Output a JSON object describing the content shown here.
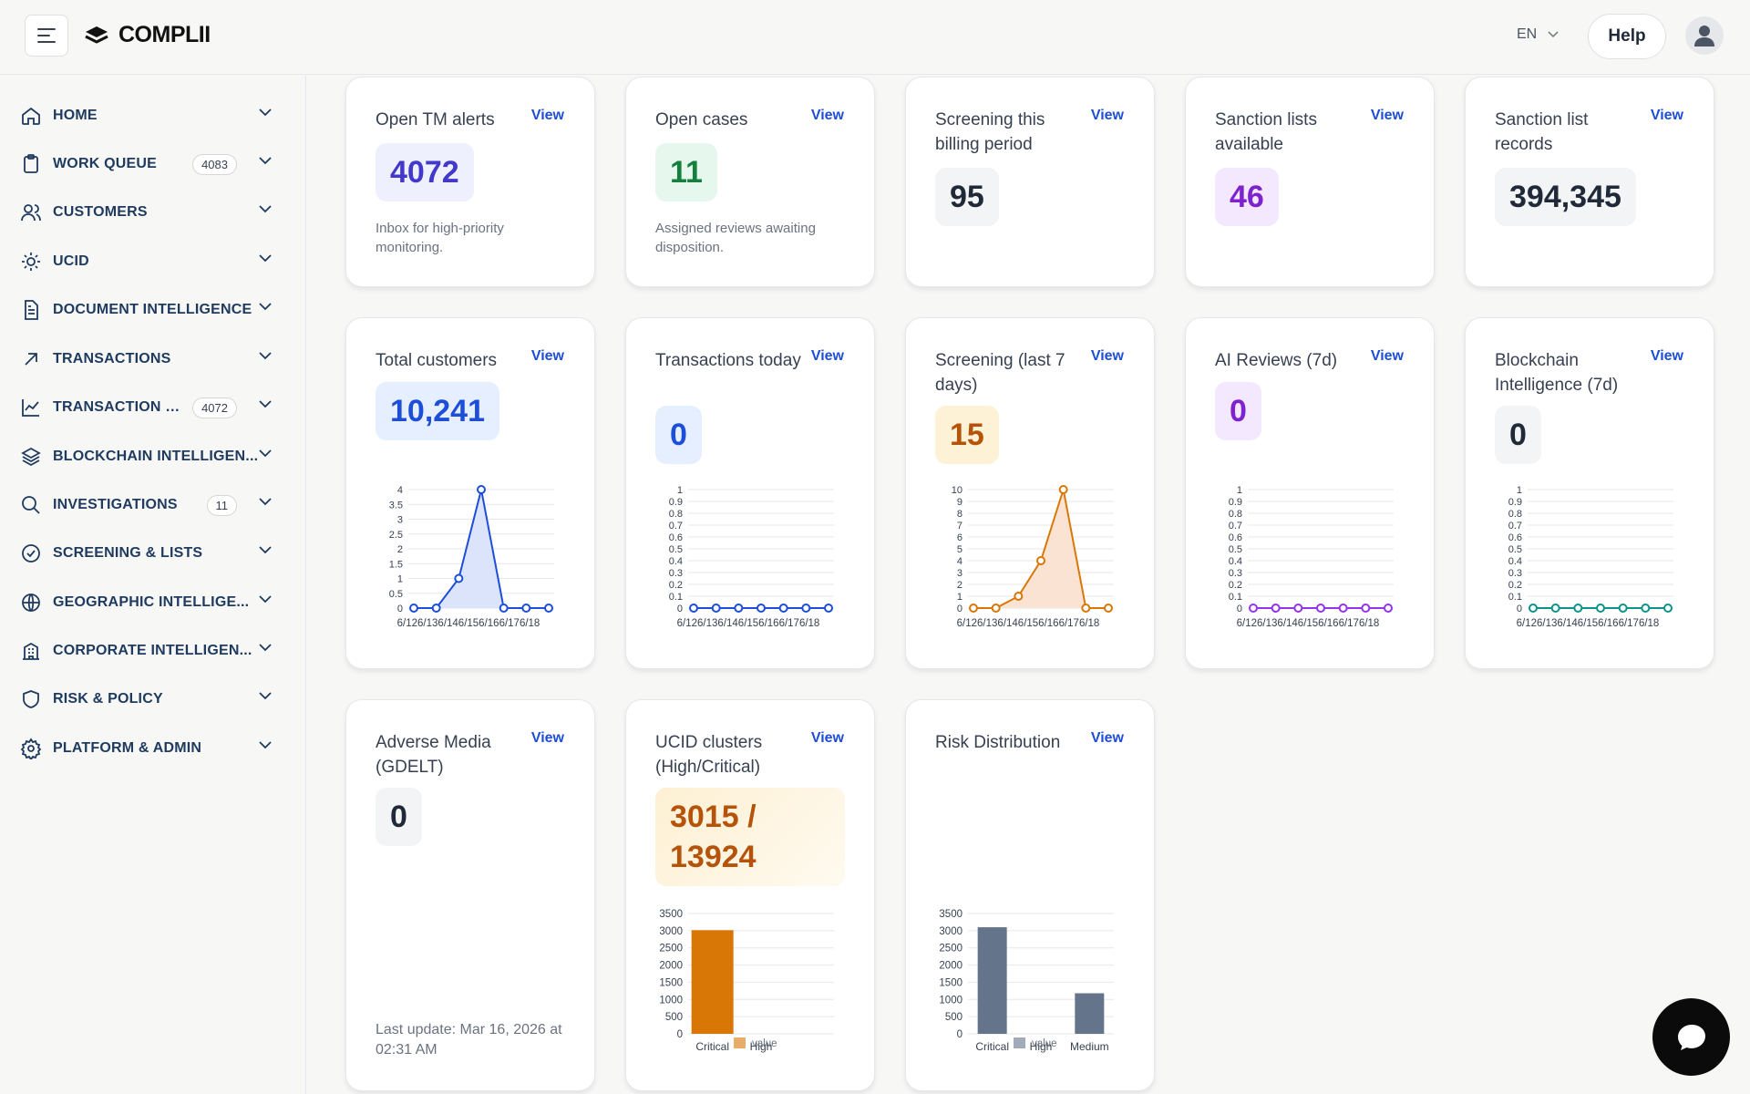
{
  "app": {
    "brand": "COMPLII"
  },
  "header": {
    "lang": "EN",
    "help": "Help"
  },
  "sidebar": {
    "items": [
      {
        "label": "HOME",
        "icon": "home-icon"
      },
      {
        "label": "WORK QUEUE",
        "icon": "clipboard-icon",
        "badge": "4083"
      },
      {
        "label": "CUSTOMERS",
        "icon": "users-icon"
      },
      {
        "label": "UCID",
        "icon": "sun-icon"
      },
      {
        "label": "DOCUMENT INTELLIGENCE",
        "icon": "document-icon"
      },
      {
        "label": "TRANSACTIONS",
        "icon": "arrow-up-right-icon"
      },
      {
        "label": "TRANSACTION M...",
        "icon": "line-chart-icon",
        "badge": "4072"
      },
      {
        "label": "BLOCKCHAIN INTELLIGEN...",
        "icon": "layers-icon"
      },
      {
        "label": "INVESTIGATIONS",
        "icon": "search-icon",
        "badge": "11"
      },
      {
        "label": "SCREENING & LISTS",
        "icon": "check-circle-icon"
      },
      {
        "label": "GEOGRAPHIC INTELLIGE...",
        "icon": "globe-icon"
      },
      {
        "label": "CORPORATE INTELLIGEN...",
        "icon": "building-icon"
      },
      {
        "label": "RISK & POLICY",
        "icon": "shield-icon"
      },
      {
        "label": "PLATFORM & ADMIN",
        "icon": "gear-icon"
      }
    ]
  },
  "cards": {
    "tm_alerts": {
      "title": "Open TM alerts",
      "view": "View",
      "value": "4072",
      "desc": "Inbox for high-priority monitoring."
    },
    "open_cases": {
      "title": "Open cases",
      "view": "View",
      "value": "11",
      "desc": "Assigned reviews awaiting disposition."
    },
    "screening_billing": {
      "title": "Screening this billing period",
      "view": "View",
      "value": "95"
    },
    "sanction_lists": {
      "title": "Sanction lists available",
      "view": "View",
      "value": "46"
    },
    "sanction_records": {
      "title": "Sanction list records",
      "view": "View",
      "value": "394,345"
    },
    "total_customers": {
      "title": "Total customers",
      "view": "View",
      "value": "10,241"
    },
    "tx_today": {
      "title": "Transactions today",
      "view": "View",
      "value": "0"
    },
    "screening_7d": {
      "title": "Screening (last 7 days)",
      "view": "View",
      "value": "15"
    },
    "ai_reviews": {
      "title": "AI Reviews (7d)",
      "view": "View",
      "value": "0"
    },
    "blockchain": {
      "title": "Blockchain Intelligence (7d)",
      "view": "View",
      "value": "0"
    },
    "adverse_media": {
      "title": "Adverse Media (GDELT)",
      "view": "View",
      "value": "0",
      "update": "Last update: Mar 16, 2026 at 02:31 AM"
    },
    "ucid_clusters": {
      "title": "UCID clusters (High/Critical)",
      "view": "View",
      "value": "3015 / 13924"
    },
    "risk_distribution": {
      "title": "Risk Distribution",
      "view": "View"
    }
  },
  "chart_data": [
    {
      "id": "total_customers",
      "type": "area",
      "x": [
        "6/12",
        "6/13",
        "6/14",
        "6/15",
        "6/16",
        "6/17",
        "6/18"
      ],
      "x_tick_text": "6/126/136/146/156/166/176/18",
      "values": [
        0,
        0,
        1,
        4,
        0,
        0,
        0
      ],
      "ylim": [
        0,
        4
      ],
      "y_ticks": [
        "0",
        "0.5",
        "1",
        "1.5",
        "2",
        "2.5",
        "3",
        "3.5",
        "4"
      ],
      "color": "#1d4ed8",
      "fill": "#dbe4fb"
    },
    {
      "id": "tx_today",
      "type": "line",
      "x": [
        "6/12",
        "6/13",
        "6/14",
        "6/15",
        "6/16",
        "6/17",
        "6/18"
      ],
      "x_tick_text": "6/126/136/146/156/166/176/18",
      "values": [
        0,
        0,
        0,
        0,
        0,
        0,
        0
      ],
      "ylim": [
        0,
        1
      ],
      "y_ticks": [
        "0",
        "0.1",
        "0.2",
        "0.3",
        "0.4",
        "0.5",
        "0.6",
        "0.7",
        "0.8",
        "0.9",
        "1"
      ],
      "color": "#1d4ed8"
    },
    {
      "id": "screening_7d",
      "type": "area",
      "x": [
        "6/12",
        "6/13",
        "6/14",
        "6/15",
        "6/16",
        "6/17",
        "6/18"
      ],
      "x_tick_text": "6/126/136/146/156/166/176/18",
      "values": [
        0,
        0,
        1,
        4,
        10,
        0,
        0
      ],
      "ylim": [
        0,
        10
      ],
      "y_ticks": [
        "0",
        "1",
        "2",
        "3",
        "4",
        "5",
        "6",
        "7",
        "8",
        "9",
        "10"
      ],
      "color": "#d97706",
      "fill": "#fbe3d3"
    },
    {
      "id": "ai_reviews",
      "type": "line",
      "x": [
        "6/12",
        "6/13",
        "6/14",
        "6/15",
        "6/16",
        "6/17",
        "6/18"
      ],
      "x_tick_text": "6/126/136/146/156/166/176/18",
      "values": [
        0,
        0,
        0,
        0,
        0,
        0,
        0
      ],
      "ylim": [
        0,
        1
      ],
      "y_ticks": [
        "0",
        "0.1",
        "0.2",
        "0.3",
        "0.4",
        "0.5",
        "0.6",
        "0.7",
        "0.8",
        "0.9",
        "1"
      ],
      "color": "#9333ea"
    },
    {
      "id": "blockchain",
      "type": "line",
      "x": [
        "6/12",
        "6/13",
        "6/14",
        "6/15",
        "6/16",
        "6/17",
        "6/18"
      ],
      "x_tick_text": "6/126/136/146/156/166/176/18",
      "values": [
        0,
        0,
        0,
        0,
        0,
        0,
        0
      ],
      "ylim": [
        0,
        1
      ],
      "y_ticks": [
        "0",
        "0.1",
        "0.2",
        "0.3",
        "0.4",
        "0.5",
        "0.6",
        "0.7",
        "0.8",
        "0.9",
        "1"
      ],
      "color": "#0d9488"
    },
    {
      "id": "ucid_clusters",
      "type": "bar",
      "categories": [
        "Critical",
        "High"
      ],
      "values": [
        3015,
        0
      ],
      "ylim": [
        0,
        3500
      ],
      "y_ticks": [
        "0",
        "500",
        "1000",
        "1500",
        "2000",
        "2500",
        "3000",
        "3500"
      ],
      "legend": "value",
      "color": "#d97706"
    },
    {
      "id": "risk_distribution",
      "type": "bar",
      "categories": [
        "Critical",
        "High",
        "Medium"
      ],
      "values": [
        3100,
        0,
        1180
      ],
      "ylim": [
        0,
        3500
      ],
      "y_ticks": [
        "0",
        "500",
        "1000",
        "1500",
        "2000",
        "2500",
        "3000",
        "3500"
      ],
      "legend": "value",
      "color": "#64748b"
    }
  ]
}
